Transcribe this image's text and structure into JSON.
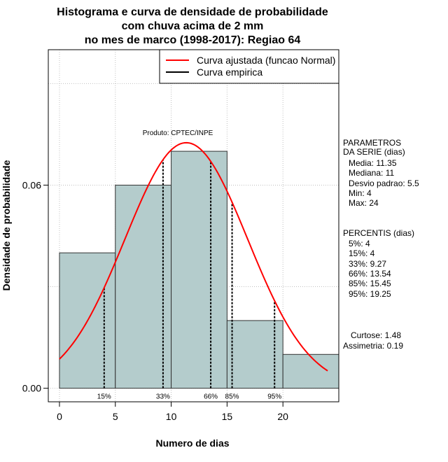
{
  "chart_data": {
    "type": "histogram",
    "title_lines": [
      "Histograma e curva de densidade de probabilidade",
      "com chuva acima de 2 mm",
      "no mes de marco (1998-2017): Regiao 64"
    ],
    "xlabel": "Numero de dias",
    "ylabel": "Densidade de probabilidade",
    "xlim": [
      -1,
      25
    ],
    "ylim": [
      -0.004,
      0.1
    ],
    "x_ticks": [
      0,
      5,
      10,
      15,
      20
    ],
    "y_ticks": [
      0.0,
      0.06
    ],
    "y_tick_labels": [
      "0.00",
      "0.06"
    ],
    "grid": true,
    "bins": [
      {
        "x0": 0,
        "x1": 5,
        "density": 0.04
      },
      {
        "x0": 5,
        "x1": 10,
        "density": 0.06
      },
      {
        "x0": 10,
        "x1": 15,
        "density": 0.07
      },
      {
        "x0": 15,
        "x1": 20,
        "density": 0.02
      },
      {
        "x0": 20,
        "x1": 25,
        "density": 0.01
      }
    ],
    "normal_fit": {
      "mean": 11.35,
      "sd": 5.5,
      "x_from": 0,
      "x_to": 24
    },
    "percentile_lines": [
      {
        "label": "15%",
        "x": 4.0
      },
      {
        "label": "33%",
        "x": 9.27
      },
      {
        "label": "66%",
        "x": 13.54
      },
      {
        "label": "85%",
        "x": 15.45
      },
      {
        "label": "95%",
        "x": 19.25
      }
    ],
    "legend": {
      "position": "top-right",
      "entries": [
        {
          "label": "Curva ajustada (funcao Normal)",
          "color": "#ff0000"
        },
        {
          "label": "Curva empirica",
          "color": "#000000"
        }
      ]
    },
    "annotation": "Produto: CPTEC/INPE",
    "parametros_lines": [
      "PARAMETROS",
      "DA SERIE (dias)",
      "Media: 11.35",
      "Mediana: 11",
      "Desvio padrao: 5.5",
      "Min: 4",
      "Max: 24"
    ],
    "percentis_lines": [
      "PERCENTIS (dias)",
      "5%: 4",
      "15%: 4",
      "33%: 9.27",
      "66%: 13.54",
      "85%: 15.45",
      "95%: 19.25"
    ],
    "stats_lines": [
      "Curtose: 1.48",
      "Assimetria: 0.19"
    ],
    "colors": {
      "bar_fill": "#b4cccc",
      "bar_stroke": "#333333",
      "fit_curve": "#ff0000",
      "grid": "#c0c0c0",
      "percentile": "#000000"
    }
  }
}
